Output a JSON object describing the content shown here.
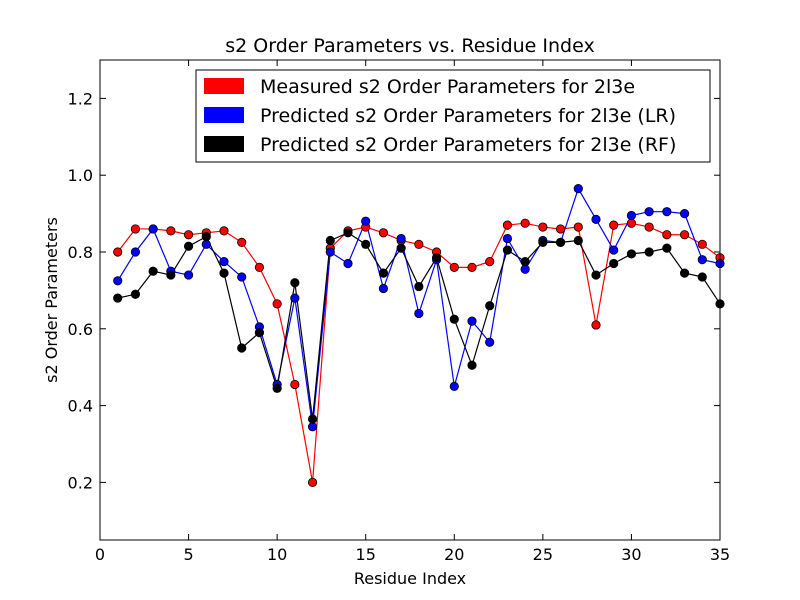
{
  "chart_data": {
    "type": "line",
    "title": "s2 Order Parameters vs. Residue Index",
    "xlabel": "Residue Index",
    "ylabel": "s2 Order Parameters",
    "xlim": [
      0,
      35
    ],
    "ylim": [
      0.05,
      1.3
    ],
    "xticks": [
      0,
      5,
      10,
      15,
      20,
      25,
      30,
      35
    ],
    "xtick_labels": [
      "0",
      "5",
      "10",
      "15",
      "20",
      "25",
      "30",
      "35"
    ],
    "yticks": [
      0.2,
      0.4,
      0.6,
      0.8,
      1.0,
      1.2
    ],
    "ytick_labels": [
      "0.2",
      "0.4",
      "0.6",
      "0.8",
      "1.0",
      "1.2"
    ],
    "grid": false,
    "legend_position": "top-right",
    "x": [
      1,
      2,
      3,
      4,
      5,
      6,
      7,
      8,
      9,
      10,
      11,
      12,
      13,
      14,
      15,
      16,
      17,
      18,
      19,
      20,
      21,
      22,
      23,
      24,
      25,
      26,
      27,
      28,
      29,
      30,
      31,
      32,
      33,
      34,
      35
    ],
    "series": [
      {
        "name": "Measured s2 Order Parameters for 2l3e",
        "color": "#ff0000",
        "values": [
          0.8,
          0.86,
          0.86,
          0.855,
          0.845,
          0.85,
          0.855,
          0.825,
          0.76,
          0.665,
          0.455,
          0.2,
          0.81,
          0.855,
          0.865,
          0.85,
          0.83,
          0.82,
          0.8,
          0.76,
          0.76,
          0.775,
          0.87,
          0.875,
          0.865,
          0.86,
          0.865,
          0.61,
          0.87,
          0.875,
          0.865,
          0.845,
          0.845,
          0.82,
          0.785
        ]
      },
      {
        "name": "Predicted s2 Order Parameters for 2l3e (LR)",
        "color": "#0000ff",
        "values": [
          0.725,
          0.8,
          0.86,
          0.75,
          0.74,
          0.82,
          0.775,
          0.735,
          0.605,
          0.455,
          0.68,
          0.345,
          0.8,
          0.77,
          0.88,
          0.705,
          0.835,
          0.64,
          0.78,
          0.45,
          0.62,
          0.565,
          0.835,
          0.755,
          0.83,
          0.825,
          0.965,
          0.885,
          0.805,
          0.895,
          0.905,
          0.905,
          0.9,
          0.78,
          0.77
        ]
      },
      {
        "name": "Predicted s2 Order Parameters for 2l3e (RF)",
        "color": "#000000",
        "values": [
          0.68,
          0.69,
          0.75,
          0.74,
          0.815,
          0.84,
          0.745,
          0.55,
          0.59,
          0.445,
          0.72,
          0.365,
          0.83,
          0.85,
          0.82,
          0.745,
          0.81,
          0.71,
          0.785,
          0.625,
          0.505,
          0.66,
          0.805,
          0.775,
          0.825,
          0.825,
          0.83,
          0.74,
          0.77,
          0.795,
          0.8,
          0.81,
          0.745,
          0.735,
          0.665
        ]
      }
    ]
  }
}
